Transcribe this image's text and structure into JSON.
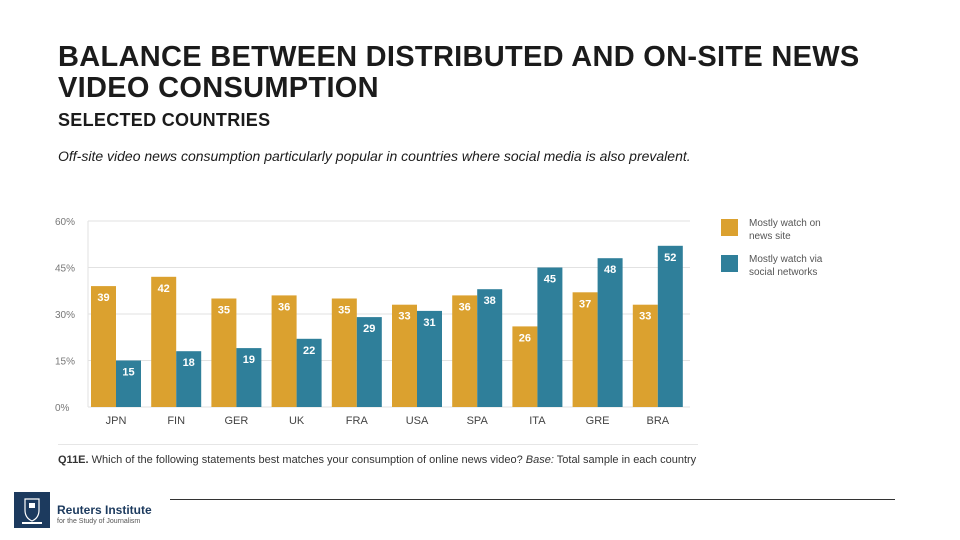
{
  "header": {
    "title": "BALANCE BETWEEN DISTRIBUTED AND ON-SITE NEWS VIDEO CONSUMPTION",
    "subtitle": "SELECTED COUNTRIES",
    "caption": "Off-site video news consumption particularly popular in countries where social media is also prevalent."
  },
  "colors": {
    "news_site": "#dba12f",
    "social": "#2f7f9a",
    "grid": "#e2e2e2"
  },
  "chart_data": {
    "type": "bar",
    "title": "",
    "xlabel": "",
    "ylabel": "",
    "ylim": [
      0,
      60
    ],
    "yticks": [
      "0%",
      "15%",
      "30%",
      "45%",
      "60%"
    ],
    "ytick_values": [
      0,
      15,
      30,
      45,
      60
    ],
    "grid": true,
    "legend_position": "right",
    "categories": [
      "JPN",
      "FIN",
      "GER",
      "UK",
      "FRA",
      "USA",
      "SPA",
      "ITA",
      "GRE",
      "BRA"
    ],
    "series": [
      {
        "name": "Mostly watch on news site",
        "values": [
          39,
          42,
          35,
          36,
          35,
          33,
          36,
          26,
          37,
          33
        ]
      },
      {
        "name": "Mostly watch via social networks",
        "values": [
          15,
          18,
          19,
          22,
          29,
          31,
          38,
          45,
          48,
          52
        ]
      }
    ]
  },
  "legend": {
    "news_site_line1": "Mostly watch on",
    "news_site_line2": "news site",
    "social_line1": "Mostly watch via",
    "social_line2": "social networks"
  },
  "footer": {
    "question_id": "Q11E.",
    "question_text": "Which of the following statements best matches your consumption of online news video?",
    "base_label": "Base:",
    "base_text": "Total sample in each country",
    "logo_line1": "Reuters Institute",
    "logo_line2": "for the Study of Journalism"
  }
}
